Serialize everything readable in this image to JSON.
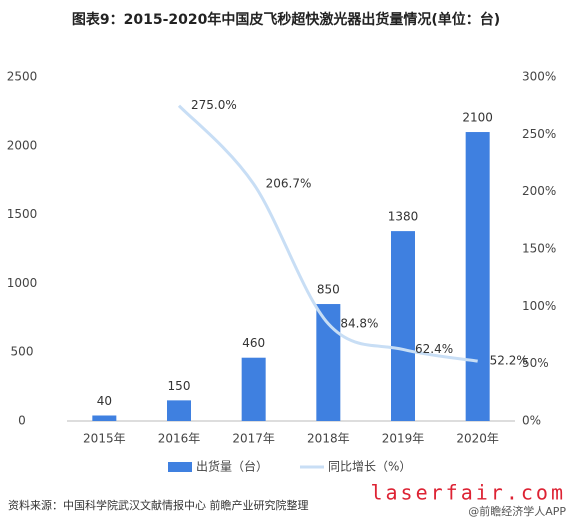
{
  "chart_data": {
    "type": "bar",
    "title": "图表9：2015-2020年中国皮飞秒超快激光器出货量情况(单位：台)",
    "categories": [
      "2015年",
      "2016年",
      "2017年",
      "2018年",
      "2019年",
      "2020年"
    ],
    "series": [
      {
        "name": "出货量（台）",
        "type": "bar",
        "color": "#3f80e0",
        "values": [
          40,
          150,
          460,
          850,
          1380,
          2100
        ]
      },
      {
        "name": "同比增长（%）",
        "type": "line",
        "axis": "y2",
        "color": "#c8def5",
        "values": [
          null,
          275.0,
          206.7,
          84.8,
          62.4,
          52.2
        ],
        "value_labels": [
          null,
          "275.0%",
          "206.7%",
          "84.8%",
          "62.4%",
          "52.2%"
        ]
      }
    ],
    "ylim": [
      0,
      2500
    ],
    "yticks": [
      0,
      500,
      1000,
      1500,
      2000,
      2500
    ],
    "y2lim": [
      0,
      300
    ],
    "y2ticks": [
      {
        "value": 0,
        "label": "0%"
      },
      {
        "value": 50,
        "label": "50%"
      },
      {
        "value": 100,
        "label": "100%"
      },
      {
        "value": 150,
        "label": "150%"
      },
      {
        "value": 200,
        "label": "200%"
      },
      {
        "value": 250,
        "label": "250%"
      },
      {
        "value": 300,
        "label": "300%"
      }
    ],
    "legend": "bottom",
    "source": "资料来源：中国科学院武汉文献情报中心 前瞻产业研究院整理",
    "site": "laserfair.com",
    "watermark": "@前瞻经济学人APP"
  }
}
